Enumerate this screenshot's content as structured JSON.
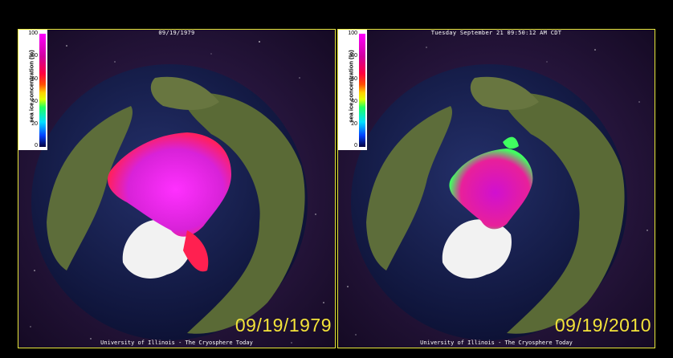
{
  "panels": [
    {
      "header": "09/19/1979",
      "date_stamp": "09/19/1979",
      "footer": "University of Illinois - The Cryosphere Today"
    },
    {
      "header": "Tuesday September 21 09:50:12 AM CDT",
      "date_stamp": "09/19/2010",
      "footer": "University of Illinois - The Cryosphere Today"
    }
  ],
  "legend": {
    "title": "sea ice concentration (%)",
    "ticks": [
      "100",
      "80",
      "60",
      "40",
      "20",
      "0"
    ]
  },
  "colors": {
    "frame": "#e8e83a",
    "date_text": "#f3e33a",
    "ocean": "#1a2150",
    "ice_high": "#e020e0",
    "ice_mid": "#ff2060",
    "land": "#5a6a38",
    "greenland": "#f0f0f0"
  }
}
